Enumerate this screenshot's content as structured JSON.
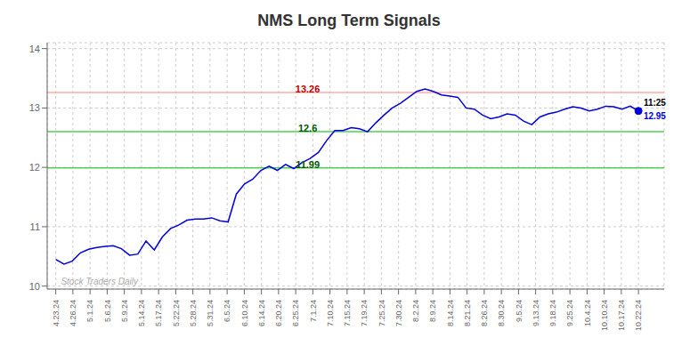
{
  "chart_data": {
    "type": "line",
    "title": "NMS Long Term Signals",
    "xlim": [
      -0.5,
      35.5
    ],
    "xticks": [
      {
        "value": 0,
        "label": "4.23.24"
      },
      {
        "value": 1,
        "label": "4.26.24"
      },
      {
        "value": 2,
        "label": "5.1.24"
      },
      {
        "value": 3,
        "label": "5.6.24"
      },
      {
        "value": 4,
        "label": "5.9.24"
      },
      {
        "value": 5,
        "label": "5.14.24"
      },
      {
        "value": 6,
        "label": "5.17.24"
      },
      {
        "value": 7,
        "label": "5.22.24"
      },
      {
        "value": 8,
        "label": "5.28.24"
      },
      {
        "value": 9,
        "label": "5.31.24"
      },
      {
        "value": 10,
        "label": "6.5.24"
      },
      {
        "value": 11,
        "label": "6.10.24"
      },
      {
        "value": 12,
        "label": "6.14.24"
      },
      {
        "value": 13,
        "label": "6.20.24"
      },
      {
        "value": 14,
        "label": "6.25.24"
      },
      {
        "value": 15,
        "label": "7.1.24"
      },
      {
        "value": 16,
        "label": "7.10.24"
      },
      {
        "value": 17,
        "label": "7.15.24"
      },
      {
        "value": 18,
        "label": "7.19.24"
      },
      {
        "value": 19,
        "label": "7.25.24"
      },
      {
        "value": 20,
        "label": "7.30.24"
      },
      {
        "value": 21,
        "label": "8.2.24"
      },
      {
        "value": 22,
        "label": "8.9.24"
      },
      {
        "value": 23,
        "label": "8.14.24"
      },
      {
        "value": 24,
        "label": "8.21.24"
      },
      {
        "value": 25,
        "label": "8.26.24"
      },
      {
        "value": 26,
        "label": "8.30.24"
      },
      {
        "value": 27,
        "label": "9.5.24"
      },
      {
        "value": 28,
        "label": "9.13.24"
      },
      {
        "value": 29,
        "label": "9.18.24"
      },
      {
        "value": 30,
        "label": "9.25.24"
      },
      {
        "value": 31,
        "label": "10.4.24"
      },
      {
        "value": 32,
        "label": "10.10.24"
      },
      {
        "value": 33,
        "label": "10.17.24"
      },
      {
        "value": 34,
        "label": "10.22.24"
      }
    ],
    "ylim": [
      9.95,
      14.1
    ],
    "yticks": [
      10,
      11,
      12,
      13,
      14
    ],
    "grid": true,
    "color": "#0000dd",
    "x": [
      0,
      0.4789,
      0.9577,
      1.4366,
      1.9155,
      2.3944,
      2.8732,
      3.3521,
      3.831,
      4.3099,
      4.7887,
      5.2676,
      5.7465,
      6.2254,
      6.7042,
      7.1831,
      7.662,
      8.1408,
      8.6197,
      9.0986,
      9.5775,
      10.0563,
      10.5352,
      11.0141,
      11.493,
      11.9718,
      12.4507,
      12.9296,
      13.4085,
      13.8873,
      14.3662,
      14.8451,
      15.3239,
      15.8028,
      16.2817,
      16.7606,
      17.2394,
      17.7183,
      18.1972,
      18.6761,
      19.1549,
      19.6338,
      20.1127,
      20.5915,
      21.0704,
      21.5493,
      22.0282,
      22.507,
      22.9859,
      23.4648,
      23.9437,
      24.4225,
      24.9014,
      25.3803,
      25.8592,
      26.338,
      26.8169,
      27.2958,
      27.7746,
      28.2535,
      28.7324,
      29.2113,
      29.6901,
      30.169,
      30.6479,
      31.1268,
      31.6056,
      32.0845,
      32.5634,
      33.0423,
      33.5211,
      34
    ],
    "values": [
      10.45,
      10.37,
      10.42,
      10.56,
      10.62,
      10.65,
      10.67,
      10.68,
      10.63,
      10.52,
      10.54,
      10.76,
      10.61,
      10.83,
      10.97,
      11.03,
      11.11,
      11.13,
      11.13,
      11.15,
      11.1,
      11.08,
      11.55,
      11.72,
      11.8,
      11.95,
      12.02,
      11.95,
      12.05,
      11.98,
      12.08,
      12.15,
      12.25,
      12.45,
      12.62,
      12.62,
      12.67,
      12.65,
      12.6,
      12.75,
      12.88,
      13.0,
      13.08,
      13.18,
      13.28,
      13.32,
      13.28,
      13.22,
      13.2,
      13.18,
      13.0,
      12.98,
      12.88,
      12.82,
      12.85,
      12.9,
      12.88,
      12.78,
      12.72,
      12.85,
      12.9,
      12.93,
      12.98,
      13.02,
      13.0,
      12.95,
      12.98,
      13.03,
      13.02,
      12.98,
      13.03,
      12.95
    ],
    "reference_lines": [
      {
        "y": 13.26,
        "color": "#ffaaaa",
        "label": "13.26",
        "label_color": "#bb0000",
        "label_x": 14.7
      },
      {
        "y": 12.6,
        "color": "#55cc55",
        "label": "12.6",
        "label_color": "#005500",
        "label_x": 14.7
      },
      {
        "y": 11.99,
        "color": "#55cc55",
        "label": "11.99",
        "label_color": "#005500",
        "label_x": 14.7
      }
    ],
    "points": [
      {
        "x": 34,
        "y": 12.95,
        "color": "#0000dd"
      }
    ],
    "annotations": [
      {
        "text": "11:25",
        "x": 34.3,
        "y": 13.08,
        "color": "#000000"
      },
      {
        "text": "12.95",
        "x": 34.3,
        "y": 12.85,
        "color": "#0000dd"
      },
      {
        "text": "Stock Traders Daily",
        "x": 0.3,
        "y": 10.03,
        "color": "#aaaaaa"
      }
    ]
  }
}
